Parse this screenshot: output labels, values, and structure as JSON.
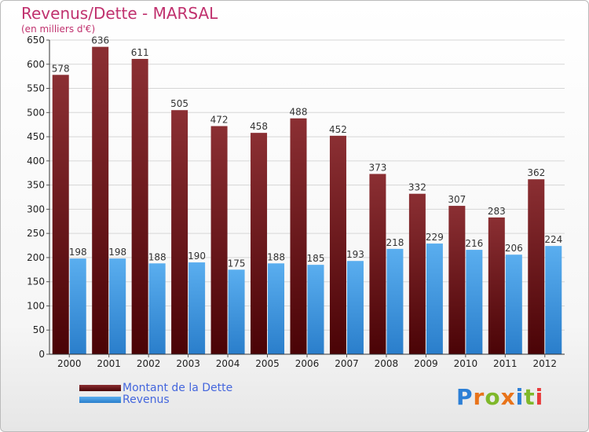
{
  "title": "Revenus/Dette - MARSAL",
  "subtitle": "(en milliers d'€)",
  "colors": {
    "debt_top": "#8b2f33",
    "debt_bottom": "#4a0306",
    "revenue_top": "#5aaeef",
    "revenue_bottom": "#2a7ecb",
    "title": "#c0316e",
    "legend_text": "#4466dd"
  },
  "logo": {
    "text": "Proxiti"
  },
  "chart_data": {
    "type": "bar",
    "categories": [
      "2000",
      "2001",
      "2002",
      "2003",
      "2004",
      "2005",
      "2006",
      "2007",
      "2008",
      "2009",
      "2010",
      "2011",
      "2012"
    ],
    "series": [
      {
        "name": "Montant de la Dette",
        "values": [
          578,
          636,
          611,
          505,
          472,
          458,
          488,
          452,
          373,
          332,
          307,
          283,
          362
        ]
      },
      {
        "name": "Revenus",
        "values": [
          198,
          198,
          188,
          190,
          175,
          188,
          185,
          193,
          218,
          229,
          216,
          206,
          224
        ]
      }
    ],
    "yticks": [
      0,
      50,
      100,
      150,
      200,
      250,
      300,
      350,
      400,
      450,
      500,
      550,
      600,
      650
    ],
    "ylim": [
      0,
      650
    ],
    "grid": true,
    "legend_position": "bottom-left"
  }
}
